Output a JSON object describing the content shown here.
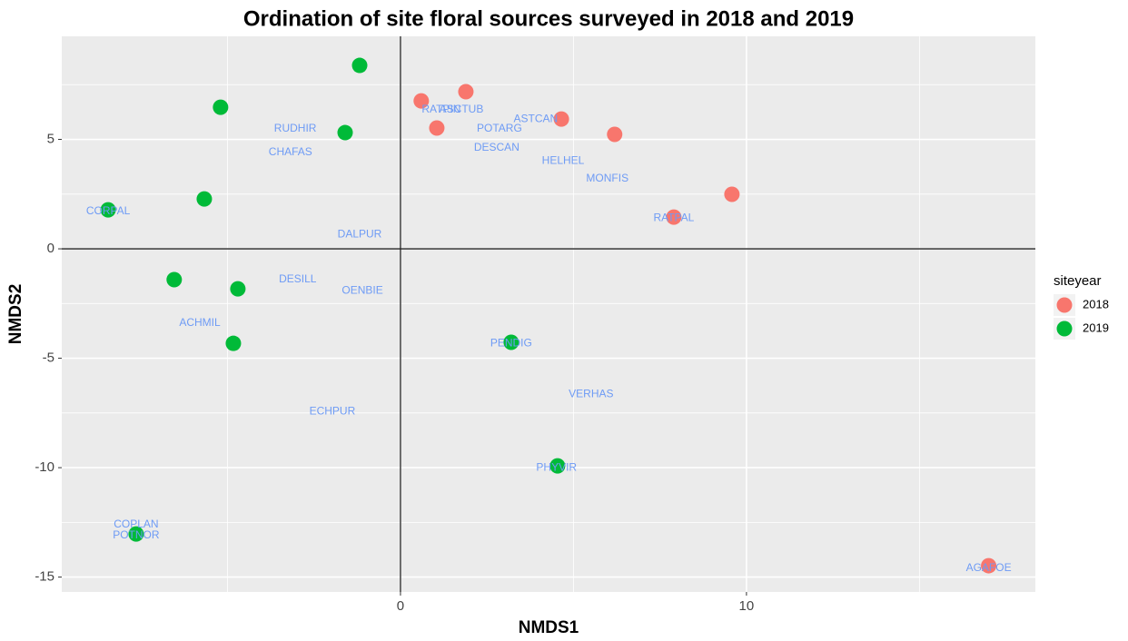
{
  "chart_data": {
    "type": "scatter",
    "title": "Ordination of site floral sources surveyed in 2018 and 2019",
    "x_label": "NMDS1",
    "y_label": "NMDS2",
    "legend_title": "siteyear",
    "legend_position": "right",
    "xlim": [
      -9.79,
      18.35
    ],
    "ylim": [
      -15.68,
      9.71
    ],
    "xticks": [
      0,
      10
    ],
    "yticks": [
      -15,
      -10,
      -5,
      0,
      5
    ],
    "minor_xticks": [
      -5,
      5,
      15
    ],
    "minor_yticks": [
      -12.5,
      -7.5,
      -2.5,
      2.5,
      7.5
    ],
    "grid": true,
    "zero_lines": true,
    "series": [
      {
        "name": "2018",
        "color": "#F8766D",
        "x": [
          0.6,
          1.89,
          1.05,
          4.65,
          6.19,
          9.58,
          7.9,
          17.0
        ],
        "values": [
          6.76,
          7.18,
          5.52,
          5.93,
          5.23,
          2.49,
          1.45,
          -14.48
        ]
      },
      {
        "name": "2019",
        "color": "#00BA38",
        "x": [
          -1.18,
          -5.2,
          -1.6,
          -5.67,
          -8.45,
          -6.54,
          -4.7,
          -4.83,
          3.2,
          4.54,
          -7.64
        ],
        "values": [
          8.38,
          6.47,
          5.31,
          2.28,
          1.78,
          -1.41,
          -1.83,
          -4.32,
          -4.27,
          -9.92,
          -13.03
        ]
      }
    ],
    "label_color": "#6E9BF5",
    "text_labels": [
      {
        "text": "RUDHIR",
        "x": -3.04,
        "y": 5.48
      },
      {
        "text": "CHAFAS",
        "x": -3.18,
        "y": 4.4
      },
      {
        "text": "CORPAL",
        "x": -8.45,
        "y": 1.7
      },
      {
        "text": "DALPUR",
        "x": -1.18,
        "y": 0.66
      },
      {
        "text": "DESILL",
        "x": -2.97,
        "y": -1.41
      },
      {
        "text": "OENBIE",
        "x": -1.1,
        "y": -1.91
      },
      {
        "text": "ACHMIL",
        "x": -5.8,
        "y": -3.4
      },
      {
        "text": "ECHPUR",
        "x": -1.97,
        "y": -7.43
      },
      {
        "text": "COPLAN",
        "x": -7.64,
        "y": -12.61
      },
      {
        "text": "POTNOR",
        "x": -7.64,
        "y": -13.11
      },
      {
        "text": "RATPIN",
        "x": 1.18,
        "y": 6.35
      },
      {
        "text": "ASCTUB",
        "x": 1.76,
        "y": 6.35
      },
      {
        "text": "POTARG",
        "x": 2.86,
        "y": 5.48
      },
      {
        "text": "ASTCAN",
        "x": 3.91,
        "y": 5.93
      },
      {
        "text": "DESCAN",
        "x": 2.78,
        "y": 4.61
      },
      {
        "text": "HELHEL",
        "x": 4.7,
        "y": 4.02
      },
      {
        "text": "MONFIS",
        "x": 5.98,
        "y": 3.2
      },
      {
        "text": "RATPAL",
        "x": 7.9,
        "y": 1.4
      },
      {
        "text": "PENDIG",
        "x": 3.2,
        "y": -4.32
      },
      {
        "text": "VERHAS",
        "x": 5.51,
        "y": -6.64
      },
      {
        "text": "PHYVIR",
        "x": 4.51,
        "y": -10.0
      },
      {
        "text": "AGAFOE",
        "x": 17.0,
        "y": -14.6
      }
    ]
  }
}
